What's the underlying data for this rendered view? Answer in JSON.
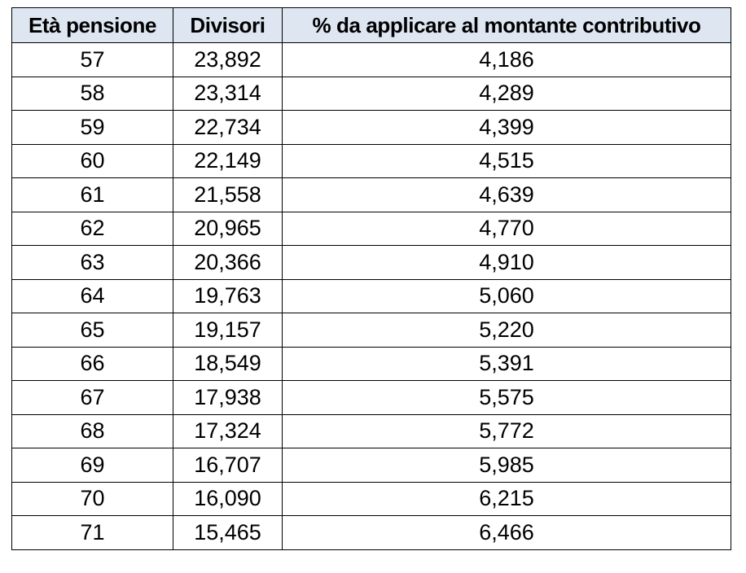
{
  "table": {
    "headers": [
      "Età pensione",
      "Divisori",
      "% da applicare al montante contributivo"
    ],
    "rows": [
      [
        "57",
        "23,892",
        "4,186"
      ],
      [
        "58",
        "23,314",
        "4,289"
      ],
      [
        "59",
        "22,734",
        "4,399"
      ],
      [
        "60",
        "22,149",
        "4,515"
      ],
      [
        "61",
        "21,558",
        "4,639"
      ],
      [
        "62",
        "20,965",
        "4,770"
      ],
      [
        "63",
        "20,366",
        "4,910"
      ],
      [
        "64",
        "19,763",
        "5,060"
      ],
      [
        "65",
        "19,157",
        "5,220"
      ],
      [
        "66",
        "18,549",
        "5,391"
      ],
      [
        "67",
        "17,938",
        "5,575"
      ],
      [
        "68",
        "17,324",
        "5,772"
      ],
      [
        "69",
        "16,707",
        "5,985"
      ],
      [
        "70",
        "16,090",
        "6,215"
      ],
      [
        "71",
        "15,465",
        "6,466"
      ]
    ]
  },
  "colors": {
    "header_background": "#dde6f1",
    "border": "#000000",
    "text": "#000000"
  }
}
